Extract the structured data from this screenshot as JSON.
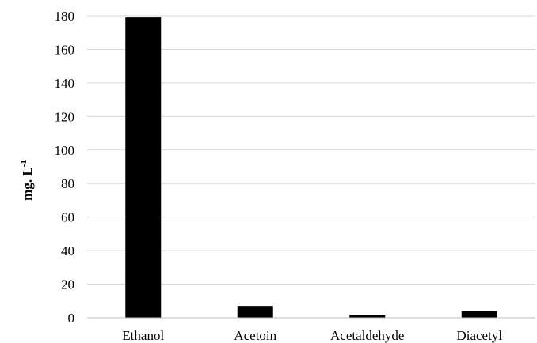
{
  "chart_data": {
    "type": "bar",
    "categories": [
      "Ethanol",
      "Acetoin",
      "Acetaldehyde",
      "Diacetyl"
    ],
    "values": [
      179,
      7,
      1.5,
      4
    ],
    "ylabel": {
      "text": "mg. L",
      "superscript": "-1"
    },
    "ylim": [
      0,
      180
    ],
    "y_ticks": [
      "0",
      "20",
      "40",
      "60",
      "80",
      "100",
      "120",
      "140",
      "160",
      "180"
    ],
    "grid": true,
    "legend": "none",
    "bar_color": "#000000",
    "grid_color": "#d9d9d9",
    "axis_color": "#bfbfbf"
  }
}
